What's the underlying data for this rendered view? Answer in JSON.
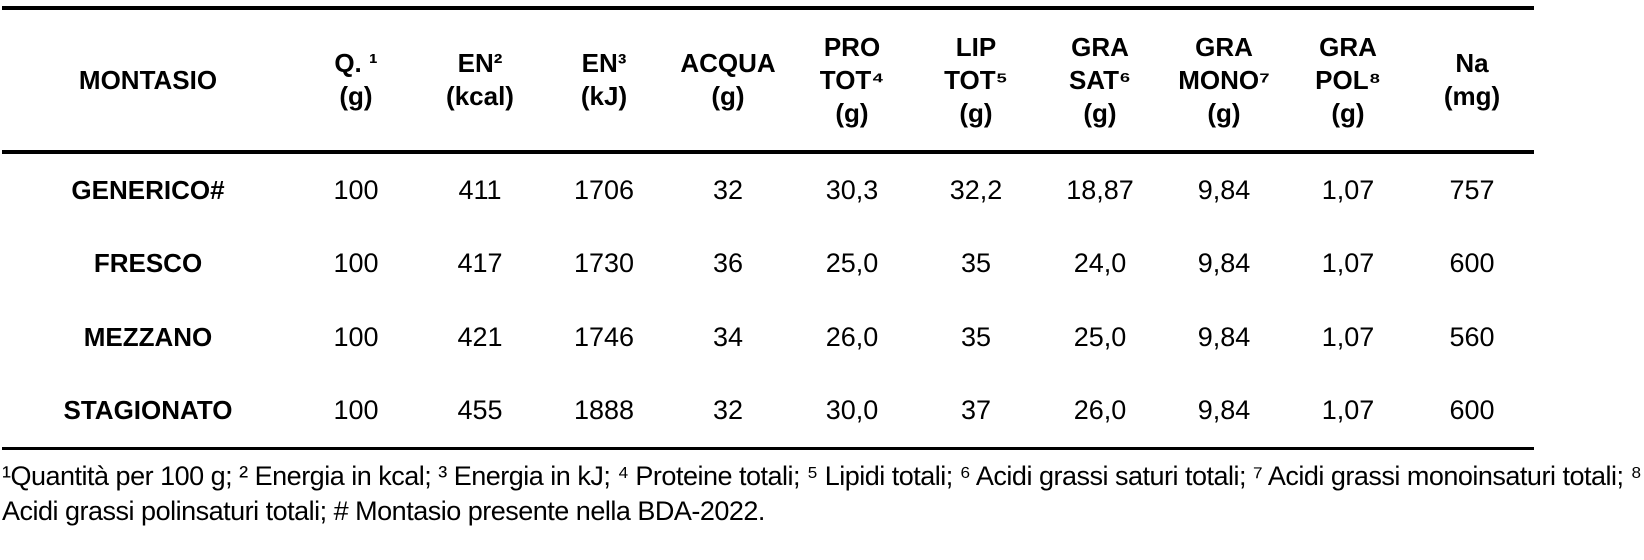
{
  "table": {
    "title_column": "MONTASIO",
    "columns": [
      {
        "id": "montasio",
        "label": "MONTASIO"
      },
      {
        "id": "q",
        "label": "Q. ¹\n(g)"
      },
      {
        "id": "en-kcal",
        "label": "EN²\n(kcal)"
      },
      {
        "id": "en-kj",
        "label": "EN³\n(kJ)"
      },
      {
        "id": "acqua",
        "label": "ACQUA\n(g)"
      },
      {
        "id": "pro-tot",
        "label": "PRO\nTOT⁴\n(g)"
      },
      {
        "id": "lip-tot",
        "label": "LIP\nTOT⁵\n(g)"
      },
      {
        "id": "gra-sat",
        "label": "GRA\nSAT⁶\n(g)"
      },
      {
        "id": "gra-mono",
        "label": "GRA\nMONO⁷\n(g)"
      },
      {
        "id": "gra-pol",
        "label": "GRA\nPOL⁸\n(g)"
      },
      {
        "id": "na",
        "label": "Na\n(mg)"
      }
    ],
    "rows": [
      {
        "label": "GENERICO#",
        "values": [
          "100",
          "411",
          "1706",
          "32",
          "30,3",
          "32,2",
          "18,87",
          "9,84",
          "1,07",
          "757"
        ]
      },
      {
        "label": "FRESCO",
        "values": [
          "100",
          "417",
          "1730",
          "36",
          "25,0",
          "35",
          "24,0",
          "9,84",
          "1,07",
          "600"
        ]
      },
      {
        "label": "MEZZANO",
        "values": [
          "100",
          "421",
          "1746",
          "34",
          "26,0",
          "35",
          "25,0",
          "9,84",
          "1,07",
          "560"
        ]
      },
      {
        "label": "STAGIONATO",
        "values": [
          "100",
          "455",
          "1888",
          "32",
          "30,0",
          "37",
          "26,0",
          "9,84",
          "1,07",
          "600"
        ]
      }
    ]
  },
  "footnote": "¹Quantità per 100 g; ² Energia in kcal; ³ Energia in kJ; ⁴ Proteine totali; ⁵ Lipidi totali; ⁶ Acidi grassi saturi totali; ⁷ Acidi grassi monoinsaturi totali; ⁸ Acidi grassi polinsaturi totali; # Montasio presente nella BDA-2022.",
  "colors": {
    "text": "#000000",
    "rule": "#000000",
    "background": "#ffffff"
  },
  "chart_data": {
    "type": "table",
    "title": "MONTASIO",
    "categories": [
      "GENERICO#",
      "FRESCO",
      "MEZZANO",
      "STAGIONATO"
    ],
    "columns": [
      "Q. (g)",
      "EN (kcal)",
      "EN (kJ)",
      "ACQUA (g)",
      "PRO TOT (g)",
      "LIP TOT (g)",
      "GRA SAT (g)",
      "GRA MONO (g)",
      "GRA POL (g)",
      "Na (mg)"
    ],
    "series": [
      {
        "name": "GENERICO#",
        "values": [
          100,
          411,
          1706,
          32,
          30.3,
          32.2,
          18.87,
          9.84,
          1.07,
          757
        ]
      },
      {
        "name": "FRESCO",
        "values": [
          100,
          417,
          1730,
          36,
          25.0,
          35,
          24.0,
          9.84,
          1.07,
          600
        ]
      },
      {
        "name": "MEZZANO",
        "values": [
          100,
          421,
          1746,
          34,
          26.0,
          35,
          25.0,
          9.84,
          1.07,
          560
        ]
      },
      {
        "name": "STAGIONATO",
        "values": [
          100,
          455,
          1888,
          32,
          30.0,
          37,
          26.0,
          9.84,
          1.07,
          600
        ]
      }
    ]
  }
}
